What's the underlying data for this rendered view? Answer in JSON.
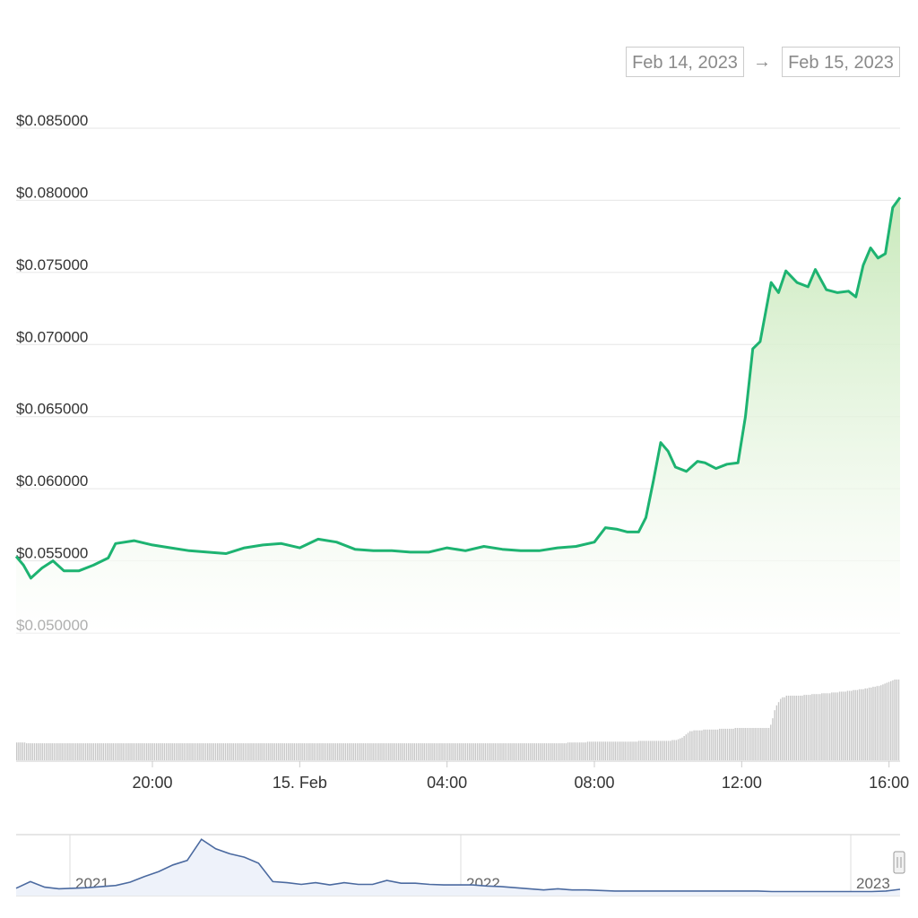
{
  "date_range": {
    "from": "Feb 14, 2023",
    "arrow": "→",
    "to": "Feb 15, 2023"
  },
  "colors": {
    "line": "#1db371",
    "area_top": "#c9e9bb",
    "grid": "#e6e6e6",
    "navigator": "#4b6aa0",
    "volume": "#c8c8c8"
  },
  "chart_data": {
    "type": "area",
    "title": "",
    "xlabel": "",
    "ylabel": "",
    "y_ticks": [
      "$0.085000",
      "$0.080000",
      "$0.075000",
      "$0.070000",
      "$0.065000",
      "$0.060000",
      "$0.055000",
      "$0.050000"
    ],
    "y_tick_values": [
      0.085,
      0.08,
      0.075,
      0.07,
      0.065,
      0.06,
      0.055,
      0.05
    ],
    "ylim": [
      0.05,
      0.085
    ],
    "x_ticks": [
      "20:00",
      "15. Feb",
      "04:00",
      "08:00",
      "12:00",
      "16:00"
    ],
    "x_tick_hours": [
      20,
      24,
      28,
      32,
      36,
      40
    ],
    "xlim_hours": [
      16.3,
      40.3
    ],
    "x_unit": "hours from Feb 14, 2023 00:00",
    "series": [
      {
        "values_x_hours": [
          16.3,
          16.5,
          16.7,
          17.0,
          17.3,
          17.6,
          18.0,
          18.4,
          18.8,
          19.0,
          19.5,
          20.0,
          20.5,
          21.0,
          21.5,
          22.0,
          22.5,
          23.0,
          23.5,
          24.0,
          24.5,
          25.0,
          25.5,
          26.0,
          26.5,
          27.0,
          27.5,
          28.0,
          28.5,
          29.0,
          29.5,
          30.0,
          30.5,
          31.0,
          31.5,
          32.0,
          32.3,
          32.6,
          32.9,
          33.2,
          33.4,
          33.6,
          33.8,
          34.0,
          34.2,
          34.5,
          34.8,
          35.0,
          35.3,
          35.6,
          35.9,
          36.1,
          36.3,
          36.5,
          36.8,
          37.0,
          37.2,
          37.5,
          37.8,
          38.0,
          38.3,
          38.6,
          38.9,
          39.1,
          39.3,
          39.5,
          39.7,
          39.9,
          40.1,
          40.3
        ],
        "values": [
          0.0553,
          0.0547,
          0.0538,
          0.0545,
          0.055,
          0.0543,
          0.0543,
          0.0547,
          0.0552,
          0.0562,
          0.0564,
          0.0561,
          0.0559,
          0.0557,
          0.0556,
          0.0555,
          0.0559,
          0.0561,
          0.0562,
          0.0559,
          0.0565,
          0.0563,
          0.0558,
          0.0557,
          0.0557,
          0.0556,
          0.0556,
          0.0559,
          0.0557,
          0.056,
          0.0558,
          0.0557,
          0.0557,
          0.0559,
          0.056,
          0.0563,
          0.0573,
          0.0572,
          0.057,
          0.057,
          0.058,
          0.0605,
          0.0632,
          0.0626,
          0.0615,
          0.0612,
          0.0619,
          0.0618,
          0.0614,
          0.0617,
          0.0618,
          0.065,
          0.0697,
          0.0702,
          0.0743,
          0.0736,
          0.0751,
          0.0743,
          0.074,
          0.0752,
          0.0738,
          0.0736,
          0.0737,
          0.0733,
          0.0755,
          0.0767,
          0.076,
          0.0763,
          0.0795,
          0.0802
        ]
      }
    ],
    "volume_relative": [
      0.22,
      0.22,
      0.22,
      0.22,
      0.22,
      0.21,
      0.21,
      0.21,
      0.21,
      0.21,
      0.21,
      0.21,
      0.21,
      0.21,
      0.21,
      0.21,
      0.21,
      0.21,
      0.21,
      0.21,
      0.21,
      0.21,
      0.21,
      0.21,
      0.21,
      0.21,
      0.21,
      0.21,
      0.21,
      0.21,
      0.21,
      0.21,
      0.21,
      0.21,
      0.21,
      0.21,
      0.21,
      0.21,
      0.21,
      0.21,
      0.21,
      0.21,
      0.21,
      0.21,
      0.21,
      0.21,
      0.21,
      0.21,
      0.21,
      0.21,
      0.21,
      0.21,
      0.21,
      0.21,
      0.21,
      0.21,
      0.21,
      0.21,
      0.21,
      0.21,
      0.21,
      0.21,
      0.21,
      0.21,
      0.21,
      0.21,
      0.21,
      0.21,
      0.21,
      0.21,
      0.21,
      0.21,
      0.21,
      0.21,
      0.21,
      0.21,
      0.21,
      0.21,
      0.21,
      0.21,
      0.21,
      0.21,
      0.21,
      0.21,
      0.21,
      0.21,
      0.21,
      0.21,
      0.21,
      0.21,
      0.21,
      0.21,
      0.21,
      0.21,
      0.21,
      0.21,
      0.21,
      0.21,
      0.21,
      0.21,
      0.21,
      0.21,
      0.21,
      0.21,
      0.21,
      0.21,
      0.21,
      0.21,
      0.21,
      0.21,
      0.21,
      0.21,
      0.21,
      0.21,
      0.21,
      0.21,
      0.21,
      0.21,
      0.21,
      0.21,
      0.21,
      0.21,
      0.21,
      0.21,
      0.21,
      0.21,
      0.21,
      0.21,
      0.21,
      0.21,
      0.21,
      0.21,
      0.21,
      0.21,
      0.21,
      0.21,
      0.21,
      0.21,
      0.21,
      0.21,
      0.21,
      0.21,
      0.21,
      0.21,
      0.21,
      0.21,
      0.21,
      0.21,
      0.21,
      0.21,
      0.21,
      0.21,
      0.21,
      0.21,
      0.21,
      0.21,
      0.21,
      0.21,
      0.21,
      0.21,
      0.21,
      0.21,
      0.21,
      0.21,
      0.21,
      0.21,
      0.21,
      0.21,
      0.21,
      0.21,
      0.21,
      0.21,
      0.21,
      0.21,
      0.21,
      0.21,
      0.21,
      0.21,
      0.21,
      0.21,
      0.21,
      0.21,
      0.21,
      0.21,
      0.21,
      0.21,
      0.21,
      0.21,
      0.21,
      0.21,
      0.21,
      0.21,
      0.21,
      0.21,
      0.21,
      0.21,
      0.21,
      0.21,
      0.21,
      0.21,
      0.21,
      0.21,
      0.21,
      0.21,
      0.21,
      0.21,
      0.21,
      0.21,
      0.21,
      0.21,
      0.21,
      0.21,
      0.21,
      0.21,
      0.21,
      0.21,
      0.21,
      0.21,
      0.21,
      0.21,
      0.21,
      0.21,
      0.21,
      0.21,
      0.21,
      0.21,
      0.21,
      0.21,
      0.21,
      0.21,
      0.21,
      0.21,
      0.21,
      0.21,
      0.21,
      0.21,
      0.21,
      0.21,
      0.21,
      0.21,
      0.21,
      0.21,
      0.21,
      0.21,
      0.21,
      0.21,
      0.21,
      0.21,
      0.21,
      0.21,
      0.21,
      0.21,
      0.21,
      0.21,
      0.21,
      0.21,
      0.21,
      0.21,
      0.21,
      0.21,
      0.21,
      0.21,
      0.21,
      0.21,
      0.21,
      0.21,
      0.21,
      0.21,
      0.21,
      0.21,
      0.21,
      0.21,
      0.21,
      0.21,
      0.21,
      0.21,
      0.21,
      0.21,
      0.21,
      0.21,
      0.22,
      0.22,
      0.22,
      0.22,
      0.22,
      0.22,
      0.22,
      0.22,
      0.22,
      0.22,
      0.23,
      0.23,
      0.23,
      0.23,
      0.23,
      0.23,
      0.23,
      0.23,
      0.23,
      0.23,
      0.23,
      0.23,
      0.23,
      0.23,
      0.23,
      0.23,
      0.23,
      0.23,
      0.23,
      0.23,
      0.23,
      0.23,
      0.23,
      0.23,
      0.23,
      0.23,
      0.24,
      0.24,
      0.24,
      0.24,
      0.24,
      0.24,
      0.24,
      0.24,
      0.24,
      0.24,
      0.24,
      0.24,
      0.24,
      0.24,
      0.24,
      0.24,
      0.24,
      0.25,
      0.25,
      0.25,
      0.26,
      0.27,
      0.28,
      0.3,
      0.32,
      0.34,
      0.36,
      0.36,
      0.37,
      0.37,
      0.37,
      0.37,
      0.37,
      0.38,
      0.38,
      0.38,
      0.38,
      0.38,
      0.38,
      0.38,
      0.38,
      0.39,
      0.39,
      0.39,
      0.39,
      0.39,
      0.39,
      0.39,
      0.39,
      0.4,
      0.4,
      0.4,
      0.4,
      0.4,
      0.4,
      0.4,
      0.4,
      0.4,
      0.4,
      0.4,
      0.4,
      0.4,
      0.4,
      0.4,
      0.4,
      0.4,
      0.4,
      0.44,
      0.52,
      0.62,
      0.68,
      0.72,
      0.76,
      0.78,
      0.78,
      0.8,
      0.8,
      0.8,
      0.8,
      0.8,
      0.8,
      0.8,
      0.8,
      0.8,
      0.81,
      0.81,
      0.81,
      0.81,
      0.82,
      0.82,
      0.82,
      0.82,
      0.82,
      0.83,
      0.83,
      0.83,
      0.83,
      0.83,
      0.84,
      0.84,
      0.84,
      0.84,
      0.85,
      0.85,
      0.85,
      0.85,
      0.86,
      0.86,
      0.86,
      0.87,
      0.87,
      0.87,
      0.88,
      0.88,
      0.88,
      0.89,
      0.89,
      0.9,
      0.9,
      0.91,
      0.91,
      0.92,
      0.92,
      0.93,
      0.94,
      0.95,
      0.96,
      0.97,
      0.98,
      0.99,
      1.0,
      1.0,
      1.0
    ],
    "navigator": {
      "labels": [
        "2021",
        "2022",
        "2023"
      ],
      "values": [
        0.1,
        0.22,
        0.12,
        0.09,
        0.1,
        0.11,
        0.13,
        0.15,
        0.21,
        0.31,
        0.4,
        0.52,
        0.6,
        0.98,
        0.81,
        0.72,
        0.66,
        0.55,
        0.22,
        0.2,
        0.17,
        0.2,
        0.16,
        0.2,
        0.17,
        0.17,
        0.24,
        0.19,
        0.19,
        0.17,
        0.16,
        0.16,
        0.16,
        0.14,
        0.13,
        0.11,
        0.09,
        0.07,
        0.09,
        0.07,
        0.07,
        0.06,
        0.05,
        0.05,
        0.05,
        0.05,
        0.05,
        0.05,
        0.05,
        0.05,
        0.05,
        0.05,
        0.05,
        0.04,
        0.04,
        0.04,
        0.04,
        0.04,
        0.04,
        0.04,
        0.04,
        0.05,
        0.08
      ]
    }
  }
}
